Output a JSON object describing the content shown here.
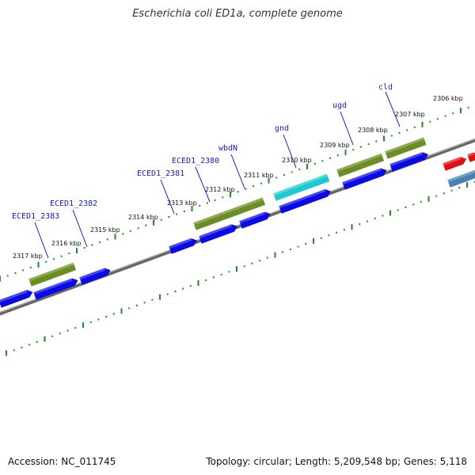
{
  "title": "Escherichia coli ED1a, complete genome",
  "footer": {
    "accession": "Accession: NC_011745",
    "summary": "Topology: circular; Length: 5,209,548 bp; Genes: 5,118"
  },
  "colors": {
    "gene_blue": "#0a0ae6",
    "gene_olive": "#6b8e23",
    "gene_cyan": "#1fc9d1",
    "gene_red": "#e01010",
    "gene_steel": "#4682b4",
    "backbone": "#888888",
    "tick_green": "#1f8a1f",
    "label_blue": "#1a1acc"
  },
  "kbp_labels": [
    "2306 kbp",
    "2307 kbp",
    "2308 kbp",
    "2309 kbp",
    "2310 kbp",
    "2311 kbp",
    "2312 kbp",
    "2313 kbp",
    "2314 kbp",
    "2315 kbp",
    "2316 kbp",
    "2317 kbp"
  ],
  "gene_labels": [
    "cld",
    "ugd",
    "gnd",
    "wbdN",
    "ECED1_2380",
    "ECED1_2381",
    "ECED1_2382",
    "ECED1_2383"
  ]
}
